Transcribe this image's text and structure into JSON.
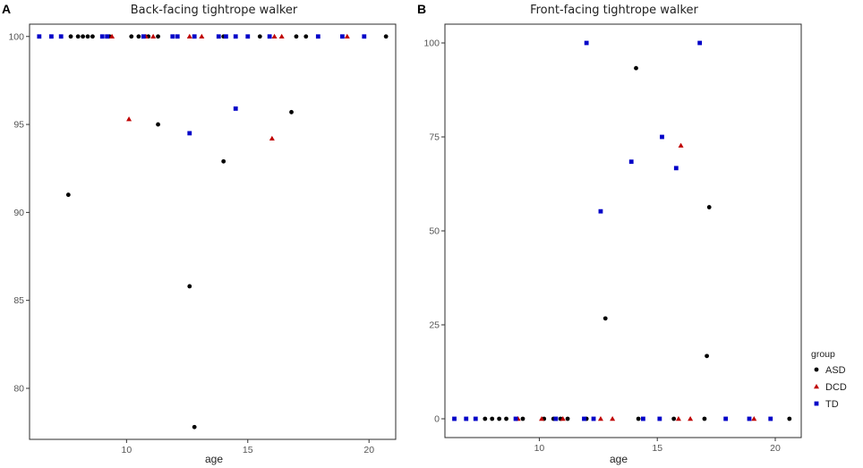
{
  "chart_data": [
    {
      "type": "scatter",
      "panel_label": "A",
      "title": "Back-facing tightrope walker",
      "xlabel": "age",
      "ylabel": "",
      "xlim": [
        6.0,
        21.1
      ],
      "ylim": [
        77.1,
        100.7
      ],
      "xticks": [
        10,
        15,
        20
      ],
      "yticks": [
        80,
        85,
        90,
        95,
        100
      ],
      "grid": false,
      "series": [
        {
          "name": "ASD",
          "color": "#000000",
          "shape": "circle",
          "points": [
            {
              "x": 7.7,
              "y": 100
            },
            {
              "x": 8.0,
              "y": 100
            },
            {
              "x": 8.2,
              "y": 100
            },
            {
              "x": 8.4,
              "y": 100
            },
            {
              "x": 8.6,
              "y": 100
            },
            {
              "x": 9.3,
              "y": 100
            },
            {
              "x": 10.2,
              "y": 100
            },
            {
              "x": 10.5,
              "y": 100
            },
            {
              "x": 10.9,
              "y": 100
            },
            {
              "x": 11.3,
              "y": 100
            },
            {
              "x": 14.0,
              "y": 100
            },
            {
              "x": 15.5,
              "y": 100
            },
            {
              "x": 17.0,
              "y": 100
            },
            {
              "x": 17.4,
              "y": 100
            },
            {
              "x": 20.7,
              "y": 100
            },
            {
              "x": 7.6,
              "y": 91.0
            },
            {
              "x": 11.3,
              "y": 95.0
            },
            {
              "x": 12.6,
              "y": 85.8
            },
            {
              "x": 12.8,
              "y": 77.8
            },
            {
              "x": 14.0,
              "y": 92.9
            },
            {
              "x": 16.8,
              "y": 95.7
            }
          ]
        },
        {
          "name": "DCD",
          "color": "#c00000",
          "shape": "triangle",
          "points": [
            {
              "x": 9.4,
              "y": 100
            },
            {
              "x": 10.8,
              "y": 100
            },
            {
              "x": 11.1,
              "y": 100
            },
            {
              "x": 12.6,
              "y": 100
            },
            {
              "x": 13.1,
              "y": 100
            },
            {
              "x": 16.1,
              "y": 100
            },
            {
              "x": 16.4,
              "y": 100
            },
            {
              "x": 19.1,
              "y": 100
            },
            {
              "x": 10.1,
              "y": 95.3
            },
            {
              "x": 16.0,
              "y": 94.2
            }
          ]
        },
        {
          "name": "TD",
          "color": "#0000c8",
          "shape": "square",
          "points": [
            {
              "x": 6.4,
              "y": 100
            },
            {
              "x": 6.9,
              "y": 100
            },
            {
              "x": 7.3,
              "y": 100
            },
            {
              "x": 9.0,
              "y": 100
            },
            {
              "x": 9.2,
              "y": 100
            },
            {
              "x": 10.7,
              "y": 100
            },
            {
              "x": 11.9,
              "y": 100
            },
            {
              "x": 12.1,
              "y": 100
            },
            {
              "x": 12.8,
              "y": 100
            },
            {
              "x": 13.8,
              "y": 100
            },
            {
              "x": 14.1,
              "y": 100
            },
            {
              "x": 14.5,
              "y": 100
            },
            {
              "x": 15.0,
              "y": 100
            },
            {
              "x": 15.9,
              "y": 100
            },
            {
              "x": 17.9,
              "y": 100
            },
            {
              "x": 18.9,
              "y": 100
            },
            {
              "x": 19.8,
              "y": 100
            },
            {
              "x": 12.6,
              "y": 94.5
            },
            {
              "x": 14.5,
              "y": 95.9
            }
          ]
        }
      ]
    },
    {
      "type": "scatter",
      "panel_label": "B",
      "title": "Front-facing tightrope walker",
      "xlabel": "age",
      "ylabel": "",
      "xlim": [
        6.0,
        21.1
      ],
      "ylim": [
        -5,
        105
      ],
      "xticks": [
        10,
        15,
        20
      ],
      "yticks": [
        0,
        25,
        50,
        75,
        100
      ],
      "grid": false,
      "series": [
        {
          "name": "ASD",
          "color": "#000000",
          "shape": "circle",
          "points": [
            {
              "x": 7.7,
              "y": 0
            },
            {
              "x": 8.0,
              "y": 0
            },
            {
              "x": 8.3,
              "y": 0
            },
            {
              "x": 8.6,
              "y": 0
            },
            {
              "x": 9.3,
              "y": 0
            },
            {
              "x": 10.2,
              "y": 0
            },
            {
              "x": 10.6,
              "y": 0
            },
            {
              "x": 10.9,
              "y": 0
            },
            {
              "x": 11.2,
              "y": 0
            },
            {
              "x": 12.0,
              "y": 0
            },
            {
              "x": 14.2,
              "y": 0
            },
            {
              "x": 15.7,
              "y": 0
            },
            {
              "x": 17.0,
              "y": 0
            },
            {
              "x": 20.6,
              "y": 0
            },
            {
              "x": 14.1,
              "y": 93.3
            },
            {
              "x": 12.8,
              "y": 26.7
            },
            {
              "x": 17.2,
              "y": 56.3
            },
            {
              "x": 17.1,
              "y": 16.7
            }
          ]
        },
        {
          "name": "DCD",
          "color": "#c00000",
          "shape": "triangle",
          "points": [
            {
              "x": 9.1,
              "y": 0
            },
            {
              "x": 10.1,
              "y": 0
            },
            {
              "x": 11.0,
              "y": 0
            },
            {
              "x": 12.6,
              "y": 0
            },
            {
              "x": 13.1,
              "y": 0
            },
            {
              "x": 15.9,
              "y": 0
            },
            {
              "x": 16.4,
              "y": 0
            },
            {
              "x": 19.1,
              "y": 0
            },
            {
              "x": 16.0,
              "y": 72.7
            }
          ]
        },
        {
          "name": "TD",
          "color": "#0000c8",
          "shape": "square",
          "points": [
            {
              "x": 6.4,
              "y": 0
            },
            {
              "x": 6.9,
              "y": 0
            },
            {
              "x": 7.3,
              "y": 0
            },
            {
              "x": 9.0,
              "y": 0
            },
            {
              "x": 10.7,
              "y": 0
            },
            {
              "x": 11.9,
              "y": 0
            },
            {
              "x": 12.3,
              "y": 0
            },
            {
              "x": 14.4,
              "y": 0
            },
            {
              "x": 15.1,
              "y": 0
            },
            {
              "x": 17.9,
              "y": 0
            },
            {
              "x": 18.9,
              "y": 0
            },
            {
              "x": 19.8,
              "y": 0
            },
            {
              "x": 12.0,
              "y": 100
            },
            {
              "x": 16.8,
              "y": 100
            },
            {
              "x": 15.2,
              "y": 75.0
            },
            {
              "x": 15.8,
              "y": 66.7
            },
            {
              "x": 13.9,
              "y": 68.4
            },
            {
              "x": 12.6,
              "y": 55.2
            }
          ]
        }
      ]
    }
  ],
  "legend": {
    "title": "group",
    "position": "right",
    "items": [
      {
        "label": "ASD",
        "color": "#000000",
        "shape": "circle"
      },
      {
        "label": "DCD",
        "color": "#c00000",
        "shape": "triangle"
      },
      {
        "label": "TD",
        "color": "#0000c8",
        "shape": "square"
      }
    ]
  }
}
